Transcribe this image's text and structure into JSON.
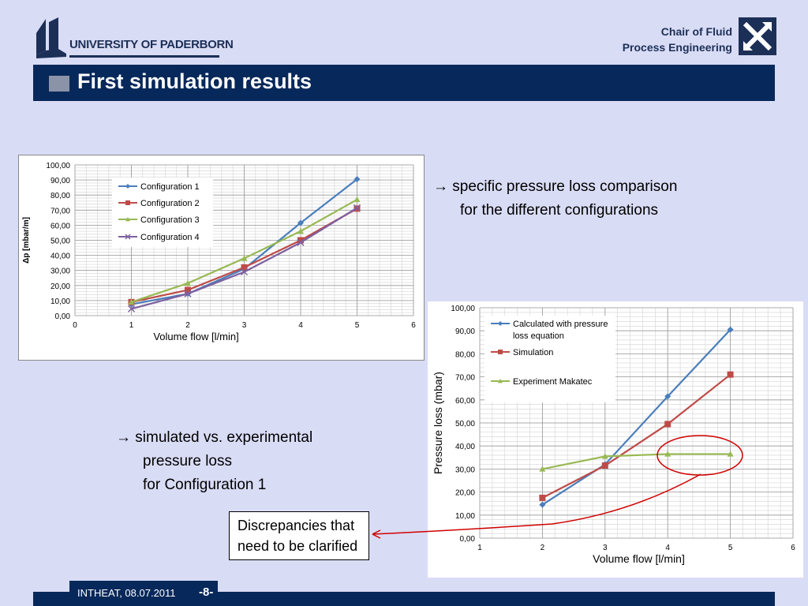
{
  "header": {
    "university": "UNIVERSITY OF PADERBORN",
    "chair_line1": "Chair of Fluid",
    "chair_line2": "Process Engineering",
    "title": "First simulation results"
  },
  "notes": {
    "note1_line1": "→ specific pressure loss comparison",
    "note1_line2": "for the different configurations",
    "note2_line1": "→ simulated vs. experimental",
    "note2_line2": "pressure loss",
    "note2_line3": "for Configuration 1",
    "callout_line1": "Discrepancies that",
    "callout_line2": "need to be clarified"
  },
  "footer": {
    "text": "INTHEAT, 08.07.2011",
    "page": "-8-"
  },
  "colors": {
    "navy": "#07285a",
    "series_blue": "#4a7ebb",
    "series_red": "#be4b48",
    "series_green": "#98b954",
    "series_purple": "#7d60a0",
    "highlight_red": "#d00000"
  },
  "chart_data": [
    {
      "type": "line",
      "xlabel": "Volume flow [l/min]",
      "ylabel": "Δp [mbar/m]",
      "xlim": [
        0,
        6
      ],
      "ylim": [
        0,
        100
      ],
      "x_ticks": [
        "0",
        "1",
        "2",
        "3",
        "4",
        "5",
        "6"
      ],
      "y_ticks": [
        "0,00",
        "10,00",
        "20,00",
        "30,00",
        "40,00",
        "50,00",
        "60,00",
        "70,00",
        "80,00",
        "90,00",
        "100,00"
      ],
      "grid": true,
      "legend": "top-left",
      "series": [
        {
          "name": "Configuration 1",
          "marker": "diamond",
          "color": "#4a7ebb",
          "x": [
            1,
            2,
            3,
            4,
            5
          ],
          "y": [
            7.5,
            14.5,
            31,
            61.5,
            90.5
          ]
        },
        {
          "name": "Configuration 2",
          "marker": "square",
          "color": "#be4b48",
          "x": [
            1,
            2,
            3,
            4,
            5
          ],
          "y": [
            9,
            17,
            32,
            50,
            71
          ]
        },
        {
          "name": "Configuration 3",
          "marker": "triangle",
          "color": "#98b954",
          "x": [
            1,
            2,
            3,
            4,
            5
          ],
          "y": [
            9,
            21.5,
            38,
            56,
            77
          ]
        },
        {
          "name": "Configuration 4",
          "marker": "x",
          "color": "#7d60a0",
          "x": [
            1,
            2,
            3,
            4,
            5
          ],
          "y": [
            4.5,
            14.5,
            29,
            48.5,
            71.5
          ]
        }
      ]
    },
    {
      "type": "line",
      "xlabel": "Volume flow [l/min]",
      "ylabel": "Pressure loss (mbar)",
      "xlim": [
        1,
        6
      ],
      "ylim": [
        0,
        100
      ],
      "x_ticks": [
        "1",
        "2",
        "3",
        "4",
        "5",
        "6"
      ],
      "y_ticks": [
        "0,00",
        "10,00",
        "20,00",
        "30,00",
        "40,00",
        "50,00",
        "60,00",
        "70,00",
        "80,00",
        "90,00",
        "100,00"
      ],
      "grid": true,
      "legend": "top-left",
      "series": [
        {
          "name": "Calculated with pressure loss equation",
          "marker": "diamond",
          "color": "#4a7ebb",
          "x": [
            2,
            3,
            4,
            5
          ],
          "y": [
            14.5,
            32,
            61.5,
            90.5
          ]
        },
        {
          "name": "Simulation",
          "marker": "square",
          "color": "#be4b48",
          "x": [
            2,
            3,
            4,
            5
          ],
          "y": [
            17.5,
            31.5,
            49.5,
            71
          ]
        },
        {
          "name": "Experiment Makatec",
          "marker": "triangle",
          "color": "#98b954",
          "x": [
            2,
            3,
            4,
            5
          ],
          "y": [
            30,
            35.5,
            36.5,
            36.5
          ]
        }
      ]
    }
  ]
}
